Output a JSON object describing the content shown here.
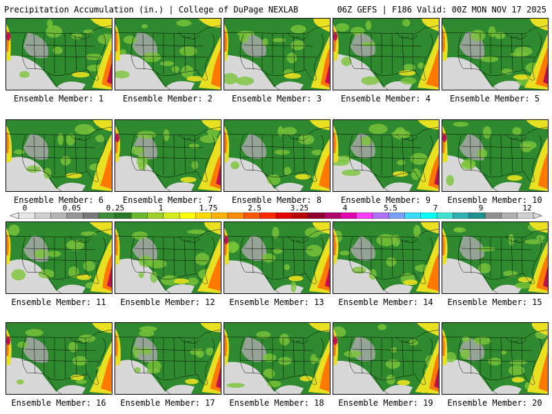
{
  "header": {
    "left": "Precipitation Accumulation (in.) | College of DuPage NEXLAB",
    "right": "06Z GEFS | F186 Valid: 00Z MON NOV 17 2025"
  },
  "members": [
    {
      "label": "Ensemble Member: 1"
    },
    {
      "label": "Ensemble Member: 2"
    },
    {
      "label": "Ensemble Member: 3"
    },
    {
      "label": "Ensemble Member: 4"
    },
    {
      "label": "Ensemble Member: 5"
    },
    {
      "label": "Ensemble Member: 6"
    },
    {
      "label": "Ensemble Member: 7"
    },
    {
      "label": "Ensemble Member: 8"
    },
    {
      "label": "Ensemble Member: 9"
    },
    {
      "label": "Ensemble Member: 10"
    },
    {
      "label": "Ensemble Member: 11"
    },
    {
      "label": "Ensemble Member: 12"
    },
    {
      "label": "Ensemble Member: 13"
    },
    {
      "label": "Ensemble Member: 14"
    },
    {
      "label": "Ensemble Member: 15"
    },
    {
      "label": "Ensemble Member: 16"
    },
    {
      "label": "Ensemble Member: 17"
    },
    {
      "label": "Ensemble Member: 18"
    },
    {
      "label": "Ensemble Member: 19"
    },
    {
      "label": "Ensemble Member: 20"
    }
  ],
  "legend": {
    "ticks": [
      "0",
      "0.05",
      "0.25",
      "1",
      "1.75",
      "2.5",
      "3.25",
      "4",
      "5.5",
      "7",
      "9",
      "12"
    ],
    "colors": [
      "#e6e6e6",
      "#cfcfcf",
      "#b4b4b4",
      "#969696",
      "#787878",
      "#3c8c3c",
      "#2a7a2a",
      "#6cba2c",
      "#9ed02c",
      "#d6ec1e",
      "#ffff00",
      "#ffd800",
      "#ffb000",
      "#ff8c00",
      "#ff5a00",
      "#ff2a00",
      "#e00000",
      "#b80000",
      "#8c0030",
      "#b0006a",
      "#e000b0",
      "#ff3cff",
      "#b070ff",
      "#7aa0ff",
      "#3cdcff",
      "#00ffff",
      "#40e0d0",
      "#30b0b0",
      "#208f8f",
      "#909090",
      "#b0b0b0",
      "#d0d0d0"
    ]
  },
  "map_colors": {
    "land": "#2f8a2f",
    "dry": "#d8d8d8",
    "light": "#a8a8a8",
    "moderate": "#7cc43a",
    "heavy": "#e8e020",
    "very_heavy": "#ff7a00",
    "extreme": "#c01050",
    "border": "#000000"
  }
}
